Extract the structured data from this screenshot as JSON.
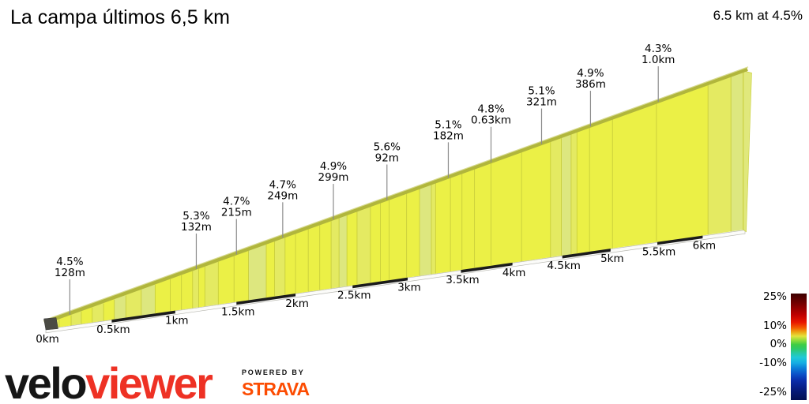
{
  "header": {
    "title": "La campa últimos 6,5 km",
    "summary": "6.5 km at 4.5%"
  },
  "chart_data": {
    "type": "area",
    "title": "La campa últimos 6,5 km",
    "subtitle": "6.5 km at 4.5%",
    "total_distance_km": 6.5,
    "average_gradient_pct": 4.5,
    "x_ticks": [
      {
        "label": "0km",
        "km": 0
      },
      {
        "label": "0.5km",
        "km": 0.5
      },
      {
        "label": "1km",
        "km": 1
      },
      {
        "label": "1.5km",
        "km": 1.5
      },
      {
        "label": "2km",
        "km": 2
      },
      {
        "label": "2.5km",
        "km": 2.5
      },
      {
        "label": "3km",
        "km": 3
      },
      {
        "label": "3.5km",
        "km": 3.5
      },
      {
        "label": "4km",
        "km": 4
      },
      {
        "label": "4.5km",
        "km": 4.5
      },
      {
        "label": "5km",
        "km": 5
      },
      {
        "label": "5.5km",
        "km": 5.5
      },
      {
        "label": "6km",
        "km": 6
      }
    ],
    "dark_base_intervals_km": [
      [
        0.5,
        1
      ],
      [
        1.5,
        2
      ],
      [
        2.5,
        3
      ],
      [
        3.5,
        4
      ],
      [
        4.5,
        5
      ],
      [
        5.5,
        6
      ]
    ],
    "annotations": [
      {
        "gradient": "4.5%",
        "length": "128m",
        "km": 0.18
      },
      {
        "gradient": "5.3%",
        "length": "132m",
        "km": 1.17
      },
      {
        "gradient": "4.7%",
        "length": "215m",
        "km": 1.5
      },
      {
        "gradient": "4.7%",
        "length": "249m",
        "km": 1.89
      },
      {
        "gradient": "4.9%",
        "length": "299m",
        "km": 2.33
      },
      {
        "gradient": "5.6%",
        "length": "92m",
        "km": 2.81
      },
      {
        "gradient": "5.1%",
        "length": "182m",
        "km": 3.38
      },
      {
        "gradient": "4.8%",
        "length": "0.63km",
        "km": 3.79
      },
      {
        "gradient": "5.1%",
        "length": "321m",
        "km": 4.29
      },
      {
        "gradient": "4.9%",
        "length": "386m",
        "km": 4.79
      },
      {
        "gradient": "4.3%",
        "length": "1.0km",
        "km": 5.51
      }
    ],
    "palette": {
      "bright": "#ebf046",
      "mid": "#e4ea62",
      "pale": "#dde77f",
      "divider": "#c9ce3c",
      "band": "#b1b63c",
      "band_highlight": "#d6d98e",
      "side_face": "#e0e87c",
      "start_cap": "#4b4b44",
      "base_strip": "#fbfbf9",
      "base_strip_edge": "#b9b9b2",
      "base_dash": "#1b1b1b",
      "pointer_line": "#8c8c8c"
    },
    "segments": [
      {
        "from": 0,
        "to": 0.1,
        "shade": "mid"
      },
      {
        "from": 0.1,
        "to": 0.19,
        "shade": "bright"
      },
      {
        "from": 0.19,
        "to": 0.267,
        "shade": "mid"
      },
      {
        "from": 0.267,
        "to": 0.35,
        "shade": "bright"
      },
      {
        "from": 0.35,
        "to": 0.437,
        "shade": "mid"
      },
      {
        "from": 0.437,
        "to": 0.52,
        "shade": "bright"
      },
      {
        "from": 0.52,
        "to": 0.61,
        "shade": "pale"
      },
      {
        "from": 0.61,
        "to": 0.73,
        "shade": "mid"
      },
      {
        "from": 0.73,
        "to": 0.84,
        "shade": "pale"
      },
      {
        "from": 0.84,
        "to": 0.96,
        "shade": "bright"
      },
      {
        "from": 0.96,
        "to": 1.05,
        "shade": "bright"
      },
      {
        "from": 1.05,
        "to": 1.14,
        "shade": "bright"
      },
      {
        "from": 1.14,
        "to": 1.19,
        "shade": "mid"
      },
      {
        "from": 1.19,
        "to": 1.24,
        "shade": "bright"
      },
      {
        "from": 1.24,
        "to": 1.35,
        "shade": "mid"
      },
      {
        "from": 1.35,
        "to": 1.48,
        "shade": "bright"
      },
      {
        "from": 1.48,
        "to": 1.6,
        "shade": "bright"
      },
      {
        "from": 1.6,
        "to": 1.75,
        "shade": "pale"
      },
      {
        "from": 1.75,
        "to": 1.82,
        "shade": "bright"
      },
      {
        "from": 1.82,
        "to": 1.91,
        "shade": "mid"
      },
      {
        "from": 1.91,
        "to": 2.0,
        "shade": "bright"
      },
      {
        "from": 2.0,
        "to": 2.11,
        "shade": "bright"
      },
      {
        "from": 2.11,
        "to": 2.21,
        "shade": "bright"
      },
      {
        "from": 2.21,
        "to": 2.31,
        "shade": "bright"
      },
      {
        "from": 2.31,
        "to": 2.38,
        "shade": "mid"
      },
      {
        "from": 2.38,
        "to": 2.45,
        "shade": "pale"
      },
      {
        "from": 2.45,
        "to": 2.54,
        "shade": "bright"
      },
      {
        "from": 2.54,
        "to": 2.66,
        "shade": "mid"
      },
      {
        "from": 2.66,
        "to": 2.75,
        "shade": "bright"
      },
      {
        "from": 2.75,
        "to": 2.83,
        "shade": "bright"
      },
      {
        "from": 2.83,
        "to": 2.99,
        "shade": "bright"
      },
      {
        "from": 2.99,
        "to": 3.11,
        "shade": "bright"
      },
      {
        "from": 3.11,
        "to": 3.22,
        "shade": "pale"
      },
      {
        "from": 3.22,
        "to": 3.26,
        "shade": "mid"
      },
      {
        "from": 3.26,
        "to": 3.4,
        "shade": "bright"
      },
      {
        "from": 3.4,
        "to": 3.51,
        "shade": "bright"
      },
      {
        "from": 3.51,
        "to": 3.63,
        "shade": "bright"
      },
      {
        "from": 3.63,
        "to": 3.79,
        "shade": "bright"
      },
      {
        "from": 3.79,
        "to": 4.09,
        "shade": "bright"
      },
      {
        "from": 4.09,
        "to": 4.38,
        "shade": "bright"
      },
      {
        "from": 4.38,
        "to": 4.49,
        "shade": "mid"
      },
      {
        "from": 4.49,
        "to": 4.59,
        "shade": "pale"
      },
      {
        "from": 4.59,
        "to": 4.65,
        "shade": "mid"
      },
      {
        "from": 4.65,
        "to": 4.78,
        "shade": "bright"
      },
      {
        "from": 4.78,
        "to": 5.02,
        "shade": "bright"
      },
      {
        "from": 5.02,
        "to": 5.49,
        "shade": "bright"
      },
      {
        "from": 5.49,
        "to": 6.06,
        "shade": "bright"
      },
      {
        "from": 6.06,
        "to": 6.32,
        "shade": "mid"
      },
      {
        "from": 6.32,
        "to": 6.46,
        "shade": "pale"
      },
      {
        "from": 6.46,
        "to": 6.5,
        "shade": "pale"
      }
    ],
    "legend": {
      "ticks": [
        {
          "label": "25%",
          "pos": 0.04
        },
        {
          "label": "10%",
          "pos": 0.31
        },
        {
          "label": "0%",
          "pos": 0.485
        },
        {
          "label": "-10%",
          "pos": 0.66
        },
        {
          "label": "-25%",
          "pos": 0.93
        }
      ],
      "gradient_stops": [
        {
          "color": "#3b0000",
          "pos": 0
        },
        {
          "color": "#790000",
          "pos": 0.1
        },
        {
          "color": "#bf0000",
          "pos": 0.2
        },
        {
          "color": "#e81600",
          "pos": 0.27
        },
        {
          "color": "#f25800",
          "pos": 0.32
        },
        {
          "color": "#eda213",
          "pos": 0.36
        },
        {
          "color": "#e4e33c",
          "pos": 0.4
        },
        {
          "color": "#8edc3c",
          "pos": 0.44
        },
        {
          "color": "#3ecc44",
          "pos": 0.48
        },
        {
          "color": "#2ec969",
          "pos": 0.52
        },
        {
          "color": "#26c9a5",
          "pos": 0.56
        },
        {
          "color": "#1fc9d8",
          "pos": 0.6
        },
        {
          "color": "#15aee3",
          "pos": 0.65
        },
        {
          "color": "#0b7fd8",
          "pos": 0.7
        },
        {
          "color": "#0b50c8",
          "pos": 0.76
        },
        {
          "color": "#0a2ba8",
          "pos": 0.82
        },
        {
          "color": "#071b7e",
          "pos": 0.9
        },
        {
          "color": "#040f52",
          "pos": 1
        }
      ]
    }
  },
  "footer": {
    "logo_velo": "velo",
    "logo_viewer": "viewer",
    "powered_by": "POWERED BY",
    "strava": "STRAVA"
  }
}
